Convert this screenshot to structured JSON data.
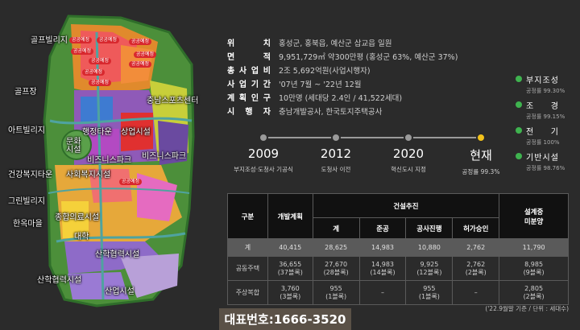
{
  "map": {
    "labels": {
      "golf_village": "골프빌리지",
      "golf_course": "골프장",
      "art_village": "아트빌리지",
      "health_welfare_town": "건강복지타운",
      "green_village": "그린빌리지",
      "hanok_village": "한옥마을",
      "culture_facility": "문화\n시설",
      "admin_town": "행정타운",
      "commercial_facility": "상업시설",
      "sports_center": "충남스포츠센터",
      "business_park_1": "비즈니스파크",
      "business_park_2": "비즈니스파크",
      "social_welfare_facility": "사회복지시설",
      "medical_facility": "종합의료시설",
      "university": "대학",
      "industry_coop_facility_1": "산학협력시설",
      "industry_coop_facility_2": "산학협력시설",
      "industrial_facility": "산업시설"
    },
    "pins": [
      "공공예정",
      "공공예정",
      "공공예정",
      "공공예정",
      "공공예정",
      "공공예정",
      "공공예정",
      "공공예정",
      "공공예정",
      "공공예정"
    ]
  },
  "info": [
    {
      "key": "위치",
      "value": "홍성군, 홍북읍, 예산군 삽교읍 일원"
    },
    {
      "key": "면적",
      "value": "9,951,729㎡ 약300만평 (홍성군 63%, 예산군 37%)"
    },
    {
      "key": "총사업비",
      "value": "2조 5,692억원(사업시행자)"
    },
    {
      "key": "사업기간",
      "value": "'07년 7월 ~ '22년 12월"
    },
    {
      "key": "계획인구",
      "value": "10만명 (세대당 2.4인 / 41,522세대)"
    },
    {
      "key": "시행자",
      "value": "충남개발공사, 한국토지주택공사"
    }
  ],
  "legend": [
    {
      "name": "부지조성",
      "rate": "공정률 99.30%"
    },
    {
      "name": "조경",
      "rate": "공정률 99.15%"
    },
    {
      "name": "전기",
      "rate": "공정률 100%"
    },
    {
      "name": "기반시설",
      "rate": "공정률 98.76%"
    }
  ],
  "timeline": [
    {
      "year": "2009",
      "desc": "부지조성·도청사 기공식"
    },
    {
      "year": "2012",
      "desc": "도청사 이전"
    },
    {
      "year": "2020",
      "desc": "혁신도시 지정"
    },
    {
      "year": "현재",
      "desc": "공정률 99.3%"
    }
  ],
  "table": {
    "headers": {
      "category": "구분",
      "plan": "개발계획",
      "construction": "건설추진",
      "total": "계",
      "completed": "준공",
      "in_progress": "공사진행",
      "pending_permit": "허가승인",
      "unsold": "설계중\n미분양"
    },
    "rows": [
      {
        "label": "계",
        "plan": "40,415",
        "total": "28,625",
        "completed": "14,983",
        "in_progress": "10,880",
        "pending_permit": "2,762",
        "unsold": "11,790"
      },
      {
        "label": "공동주택",
        "plan": "36,655\n(37블록)",
        "total": "27,670\n(28블록)",
        "completed": "14,983\n(14블록)",
        "in_progress": "9,925\n(12블록)",
        "pending_permit": "2,762\n(2블록)",
        "unsold": "8,985\n(9블록)"
      },
      {
        "label": "주상복합",
        "plan": "3,760\n(3블록)",
        "total": "955\n(1블록)",
        "completed": "–",
        "in_progress": "955\n(1블록)",
        "pending_permit": "–",
        "unsold": "2,805\n(2블록)"
      }
    ],
    "note": "('22.9월말 기준 / 단위 : 세대수)"
  },
  "phone": "대표번호:1666-3520",
  "colors": {
    "background": "#2b2b2b",
    "legend_dot": "#3fb34f",
    "current_dot": "#f2c21b",
    "timeline_dot": "#9a9a9a",
    "phone_bar": "#5a5147",
    "pin": "#d8282e"
  }
}
